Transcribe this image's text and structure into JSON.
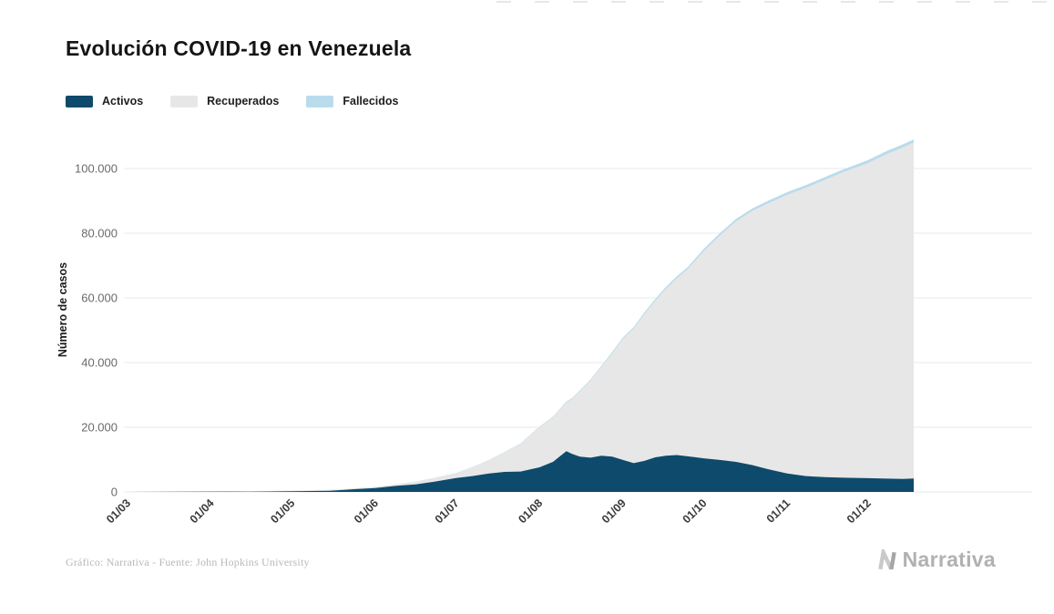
{
  "page": {
    "title": "Evolución COVID-19 en Venezuela"
  },
  "legend": [
    {
      "label": "Activos",
      "color": "#0e4a6b"
    },
    {
      "label": "Recuperados",
      "color": "#e7e7e7"
    },
    {
      "label": "Fallecidos",
      "color": "#b9dcec"
    }
  ],
  "footer": {
    "credit": "Gráfico: Narrativa - Fuente: John Hopkins University",
    "brand": "Narrativa"
  },
  "chart_data": {
    "type": "area",
    "stacked": true,
    "title": "Evolución COVID-19 en Venezuela",
    "xlabel": "",
    "ylabel": "Número de casos",
    "grid": "horizontal",
    "legend_position": "top-left",
    "ylim": [
      0,
      112000
    ],
    "y_ticks": [
      "0",
      "20.000",
      "40.000",
      "60.000",
      "80.000",
      "100.000"
    ],
    "y_tick_values": [
      0,
      20000,
      40000,
      60000,
      80000,
      100000
    ],
    "x_ticks": [
      "01/03",
      "01/04",
      "01/05",
      "01/06",
      "01/07",
      "01/08",
      "01/09",
      "01/10",
      "01/11",
      "01/12"
    ],
    "x_tick_days": [
      0,
      31,
      61,
      92,
      122,
      153,
      184,
      214,
      245,
      275
    ],
    "x_days": [
      0,
      10,
      20,
      31,
      45,
      61,
      75,
      85,
      92,
      100,
      107,
      114,
      122,
      128,
      134,
      140,
      146,
      153,
      158,
      163,
      165,
      168,
      172,
      176,
      180,
      184,
      188,
      192,
      196,
      200,
      204,
      208,
      214,
      220,
      226,
      232,
      238,
      245,
      252,
      259,
      266,
      275,
      282,
      288,
      292
    ],
    "series": [
      {
        "name": "Activos",
        "color": "#0e4a6b",
        "values": [
          0,
          33,
          62,
          99,
          84,
          187,
          360,
          860,
          1194,
          1920,
          2320,
          3150,
          4270,
          4900,
          5650,
          6200,
          6300,
          7600,
          9300,
          12600,
          11800,
          10900,
          10600,
          11200,
          10900,
          9900,
          8900,
          9600,
          10700,
          11200,
          11400,
          11000,
          10400,
          9900,
          9300,
          8300,
          7000,
          5700,
          4900,
          4600,
          4400,
          4250,
          4100,
          4000,
          4150
        ]
      },
      {
        "name": "Recuperados",
        "color": "#e7e7e7",
        "values": [
          0,
          0,
          15,
          41,
          111,
          148,
          230,
          250,
          302,
          435,
          800,
          1175,
          1510,
          2730,
          4000,
          6015,
          8560,
          12430,
          13750,
          15100,
          16950,
          20210,
          23910,
          27420,
          32040,
          37455,
          41670,
          45500,
          48430,
          51670,
          54690,
          57860,
          64090,
          69430,
          74390,
          78610,
          82280,
          86200,
          89180,
          91900,
          94530,
          97450,
          100380,
          102565,
          103900
        ]
      },
      {
        "name": "Fallecidos",
        "color": "#b9dcec",
        "values": [
          0,
          0,
          0,
          3,
          9,
          10,
          10,
          10,
          14,
          22,
          27,
          40,
          51,
          71,
          93,
          116,
          138,
          174,
          200,
          238,
          247,
          268,
          290,
          325,
          360,
          395,
          427,
          459,
          495,
          527,
          558,
          584,
          628,
          670,
          706,
          737,
          770,
          800,
          822,
          846,
          868,
          897,
          917,
          935,
          947
        ]
      }
    ]
  }
}
